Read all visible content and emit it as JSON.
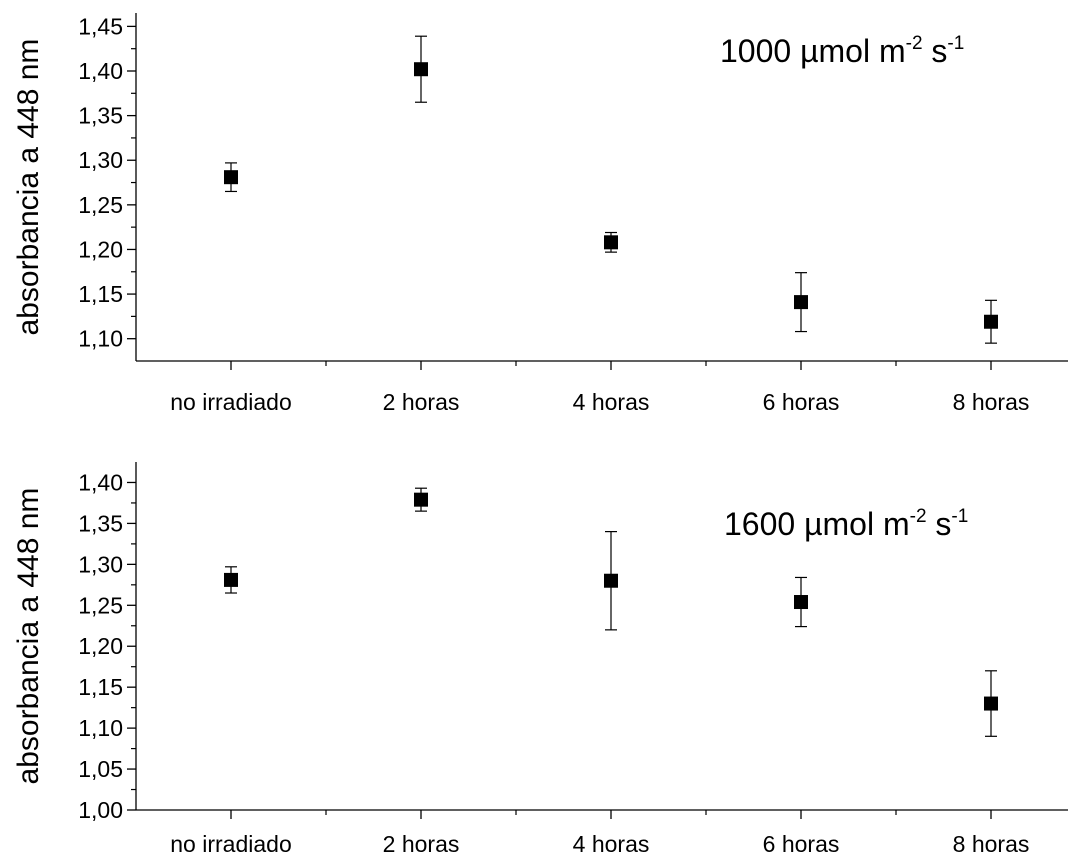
{
  "chart_data": [
    {
      "type": "scatter",
      "ylabel": "absorbancia a 448 nm",
      "annotation": {
        "prefix": "1000 ",
        "mu": "µ",
        "unit": "mol m",
        "sup1": "-2",
        "mid": " s",
        "sup2": "-1"
      },
      "categories": [
        "no irradiado",
        "2 horas",
        "4 horas",
        "6 horas",
        "8 horas"
      ],
      "values": [
        1.281,
        1.402,
        1.208,
        1.141,
        1.119
      ],
      "errors": [
        0.016,
        0.037,
        0.011,
        0.033,
        0.024
      ],
      "ylim": [
        1.075,
        1.465
      ],
      "yticks": [
        1.1,
        1.15,
        1.2,
        1.25,
        1.3,
        1.35,
        1.4,
        1.45
      ],
      "ytick_labels": [
        "1,10",
        "1,15",
        "1,20",
        "1,25",
        "1,30",
        "1,35",
        "1,40",
        "1,45"
      ],
      "marker": "square",
      "color": "#000000",
      "grid": false
    },
    {
      "type": "scatter",
      "ylabel": "absorbancia a 448 nm",
      "annotation": {
        "prefix": "1600 ",
        "mu": "µ",
        "unit": "mol m",
        "sup1": "-2",
        "mid": " s",
        "sup2": "-1"
      },
      "categories": [
        "no irradiado",
        "2 horas",
        "4 horas",
        "6 horas",
        "8 horas"
      ],
      "values": [
        1.281,
        1.379,
        1.28,
        1.254,
        1.13
      ],
      "errors": [
        0.016,
        0.014,
        0.06,
        0.03,
        0.04
      ],
      "ylim": [
        1.0,
        1.425
      ],
      "yticks": [
        1.0,
        1.05,
        1.1,
        1.15,
        1.2,
        1.25,
        1.3,
        1.35,
        1.4
      ],
      "ytick_labels": [
        "1,00",
        "1,05",
        "1,10",
        "1,15",
        "1,20",
        "1,25",
        "1,30",
        "1,35",
        "1,40"
      ],
      "marker": "square",
      "color": "#000000",
      "grid": false
    }
  ]
}
